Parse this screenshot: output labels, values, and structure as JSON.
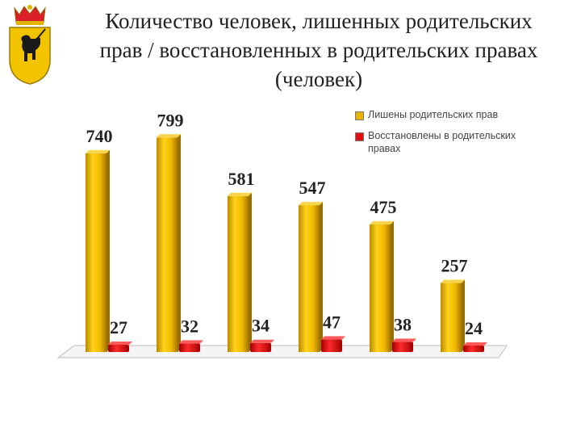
{
  "title": {
    "line1": "Количество человек, лишенных родительских",
    "line2": "прав / восстановленных в родительских правах",
    "line3": "(человек)"
  },
  "emblem": {
    "icon": "yaroslavl-coat-of-arms-icon"
  },
  "legend": {
    "items": [
      {
        "label": "Лишены родительских прав",
        "color": "#E8B400"
      },
      {
        "label": "Восстановлены в родительских правах",
        "color": "#E01010"
      }
    ]
  },
  "chart_data": {
    "type": "bar",
    "style": "3d",
    "categories": [
      "",
      "",
      "",
      "",
      "",
      ""
    ],
    "series": [
      {
        "name": "Лишены родительских прав",
        "values": [
          740,
          799,
          581,
          547,
          475,
          257
        ],
        "color": "#E8B400"
      },
      {
        "name": "Восстановлены в родительских правах",
        "values": [
          27,
          32,
          34,
          47,
          38,
          24
        ],
        "color": "#E01010"
      }
    ],
    "data_labels": {
      "series1": [
        "740",
        "799",
        "581",
        "547",
        "475",
        "257"
      ],
      "series2": [
        "27",
        "32",
        "34",
        "47",
        "38",
        "24"
      ]
    },
    "ylim": [
      0,
      830
    ],
    "grid": false,
    "legend_position": "top-right"
  }
}
